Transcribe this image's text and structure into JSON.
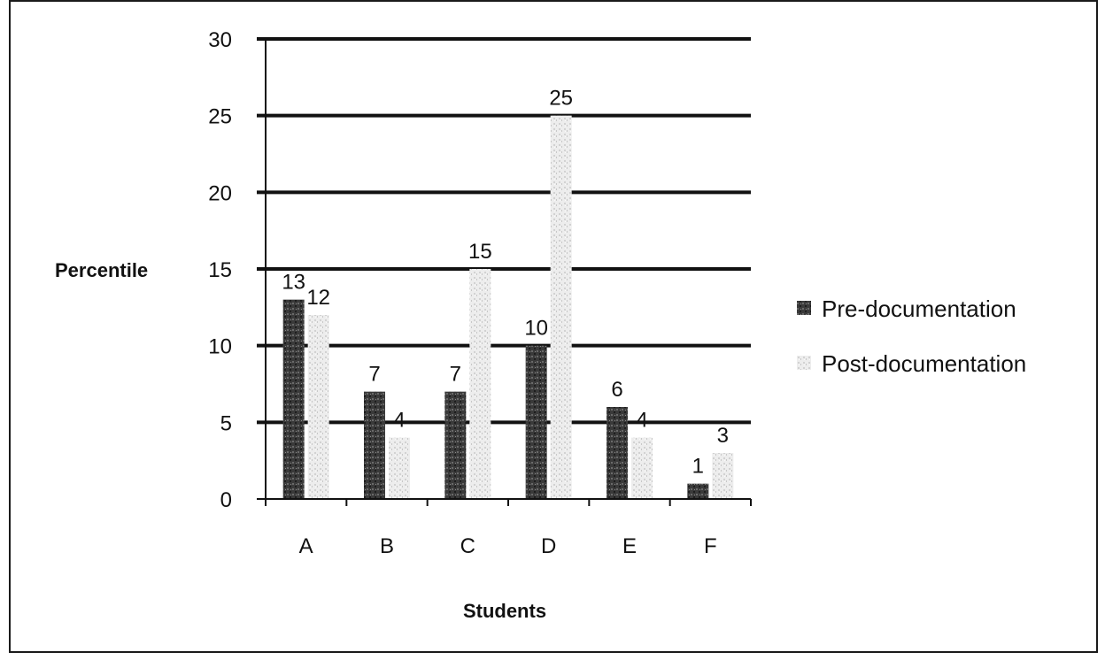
{
  "chart_data": {
    "type": "bar",
    "categories": [
      "A",
      "B",
      "C",
      "D",
      "E",
      "F"
    ],
    "series": [
      {
        "name": "Pre-documentation",
        "values": [
          13,
          7,
          7,
          10,
          6,
          1
        ],
        "color": "#3c3c3c"
      },
      {
        "name": "Post-documentation",
        "values": [
          12,
          4,
          15,
          25,
          4,
          3
        ],
        "color": "#e6e6e6"
      }
    ],
    "xlabel": "Students",
    "ylabel": "Percentile",
    "ylim": [
      0,
      30
    ],
    "yticks": [
      "0",
      "5",
      "10",
      "15",
      "20",
      "25",
      "30"
    ],
    "grid": true,
    "legend": "right"
  }
}
